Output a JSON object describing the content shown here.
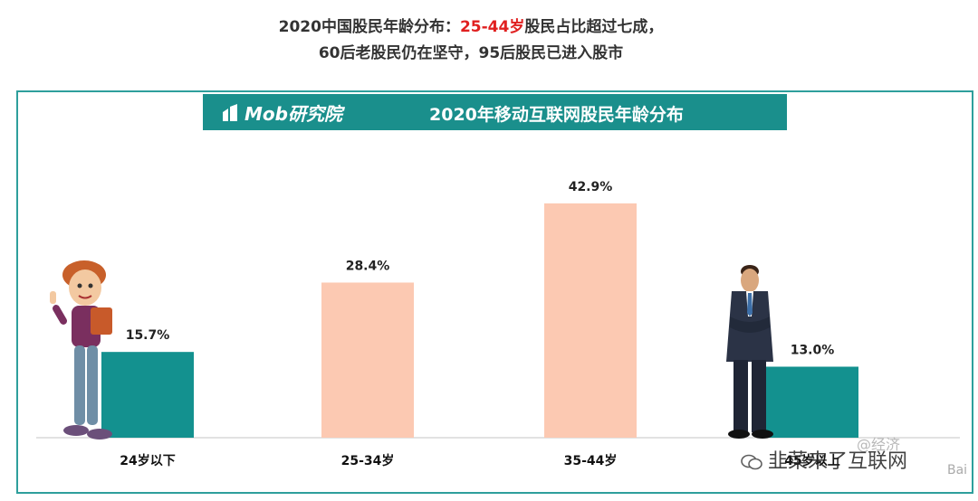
{
  "headline": {
    "line1_prefix": "2020中国股民年龄分布：",
    "line1_highlight": "25-44岁",
    "line1_suffix": "股民占比超过七成，",
    "line2": "60后老股民仍在坚守，95后股民已进入股市",
    "highlight_color": "#e02020"
  },
  "banner": {
    "logo_text": "Mob研究院",
    "title": "2020年移动互联网股民年龄分布",
    "color": "#1a8f8c"
  },
  "chart_data": {
    "type": "bar",
    "title": "2020年移动互联网股民年龄分布",
    "categories": [
      "24岁以下",
      "25-34岁",
      "35-44岁",
      "45岁以上"
    ],
    "values": [
      15.7,
      28.4,
      42.9,
      13.0
    ],
    "value_labels": [
      "15.7%",
      "28.4%",
      "42.9%",
      "13.0%"
    ],
    "colors": [
      "#13918f",
      "#fcc9b2",
      "#fcc9b2",
      "#13918f"
    ],
    "ylim": [
      0,
      50
    ],
    "grid": false,
    "legend": "none"
  },
  "watermark": {
    "text": "韭菜来了互联网",
    "secondary": "@经济",
    "corner": "Bai"
  }
}
